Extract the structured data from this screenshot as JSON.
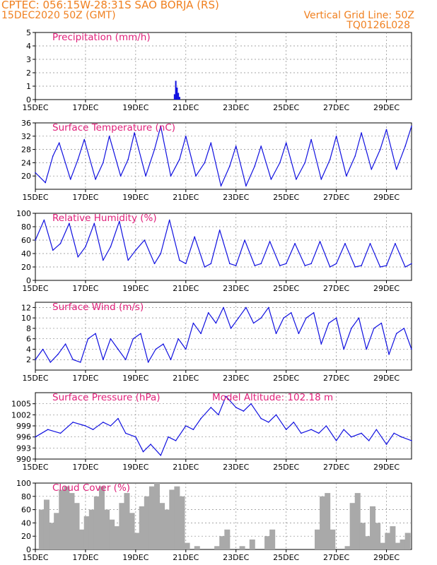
{
  "header": {
    "station": "CPTEC:   056:15W-28:31S  SAO BORJA (RS)",
    "date": "15DEC2020 50Z (GMT)",
    "grid_note": "Vertical Grid Line: 50Z",
    "model_code": "TQ0126L028"
  },
  "colors": {
    "header": "#f08020",
    "title": "#e0207a",
    "line": "#1010e0",
    "bar": "#a9a9a9",
    "grid": "#888888"
  },
  "x_tick_labels": [
    "15DEC",
    "17DEC",
    "19DEC",
    "21DEC",
    "23DEC",
    "25DEC",
    "27DEC",
    "29DEC"
  ],
  "chart_data": [
    {
      "type": "bar",
      "title": "Precipitation (mm/h)",
      "ylim": [
        0,
        5
      ],
      "yticks": [
        0,
        1,
        2,
        3,
        4,
        5
      ],
      "x": [
        5.55,
        5.6,
        5.65,
        5.7,
        5.75
      ],
      "values": [
        0.4,
        1.4,
        0.9,
        0.5,
        0.2
      ]
    },
    {
      "type": "line",
      "title": "Surface Temperature (nC)",
      "ylim": [
        16,
        36
      ],
      "yticks": [
        20,
        24,
        28,
        32,
        36
      ],
      "x": [
        0,
        0.4,
        0.7,
        0.95,
        1.4,
        1.7,
        1.95,
        2.4,
        2.7,
        2.95,
        3.4,
        3.7,
        3.95,
        4.4,
        4.75,
        5,
        5.4,
        5.75,
        6,
        6.4,
        6.75,
        7,
        7.4,
        7.75,
        8,
        8.4,
        8.75,
        9,
        9.4,
        9.75,
        10,
        10.4,
        10.75,
        11,
        11.4,
        11.75,
        12,
        12.4,
        12.75,
        13,
        13.4,
        13.75,
        14,
        14.4,
        14.75,
        15
      ],
      "values": [
        21,
        18,
        26,
        30,
        19,
        25,
        31,
        19,
        24,
        32,
        20,
        25,
        33,
        20,
        28,
        35,
        20,
        25,
        32,
        20,
        24,
        30,
        17,
        23,
        29,
        17,
        23,
        29,
        19,
        24,
        30,
        19,
        24,
        31,
        19,
        25,
        32,
        20,
        26,
        33,
        22,
        28,
        34,
        22,
        29,
        35
      ]
    },
    {
      "type": "line",
      "title": "Relative Humidity (%)",
      "ylim": [
        0,
        100
      ],
      "yticks": [
        0,
        20,
        40,
        60,
        80,
        100
      ],
      "x": [
        0,
        0.35,
        0.7,
        1,
        1.35,
        1.7,
        2,
        2.35,
        2.7,
        3,
        3.35,
        3.7,
        4,
        4.35,
        4.75,
        5,
        5.35,
        5.75,
        6,
        6.35,
        6.75,
        7,
        7.35,
        7.75,
        8,
        8.35,
        8.75,
        9,
        9.35,
        9.75,
        10,
        10.35,
        10.75,
        11,
        11.35,
        11.75,
        12,
        12.35,
        12.75,
        13,
        13.35,
        13.75,
        14,
        14.35,
        14.75,
        15
      ],
      "values": [
        60,
        90,
        45,
        55,
        85,
        35,
        50,
        85,
        30,
        50,
        88,
        30,
        45,
        60,
        25,
        40,
        90,
        30,
        25,
        65,
        20,
        25,
        75,
        25,
        22,
        60,
        22,
        25,
        58,
        22,
        25,
        55,
        22,
        25,
        58,
        20,
        25,
        55,
        20,
        22,
        55,
        20,
        22,
        55,
        20,
        25
      ]
    },
    {
      "type": "line",
      "title": "Surface Wind (m/s)",
      "ylim": [
        0,
        13
      ],
      "yticks": [
        2,
        4,
        6,
        8,
        10,
        12
      ],
      "x": [
        0,
        0.3,
        0.6,
        0.9,
        1.2,
        1.5,
        1.8,
        2.1,
        2.4,
        2.7,
        3,
        3.3,
        3.6,
        3.9,
        4.2,
        4.5,
        4.8,
        5.1,
        5.4,
        5.7,
        6,
        6.3,
        6.6,
        6.9,
        7.2,
        7.5,
        7.8,
        8.1,
        8.4,
        8.7,
        9,
        9.3,
        9.6,
        9.9,
        10.2,
        10.5,
        10.8,
        11.1,
        11.4,
        11.7,
        12,
        12.3,
        12.6,
        12.9,
        13.2,
        13.5,
        13.8,
        14.1,
        14.4,
        14.7,
        15
      ],
      "values": [
        2,
        4,
        1.5,
        3,
        5,
        2,
        1.5,
        6,
        7,
        2,
        6,
        4,
        2,
        6,
        7,
        1.5,
        4,
        5,
        2,
        6,
        4,
        9,
        7,
        11,
        9,
        12,
        8,
        10,
        12,
        9,
        10,
        12,
        7,
        10,
        11,
        7,
        10,
        11,
        5,
        9,
        10,
        4,
        8,
        10,
        4,
        8,
        9,
        3,
        7,
        8,
        4
      ]
    },
    {
      "type": "line",
      "title": "Surface Pressure (hPa)",
      "annotation": "Model Altitude: 102.18 m",
      "ylim": [
        990,
        1008
      ],
      "yticks": [
        990,
        993,
        996,
        999,
        1002,
        1005
      ],
      "x": [
        0,
        0.5,
        1,
        1.5,
        2,
        2.3,
        2.7,
        3,
        3.3,
        3.6,
        4,
        4.3,
        4.6,
        5,
        5.3,
        5.6,
        6,
        6.3,
        6.6,
        7,
        7.3,
        7.6,
        8,
        8.3,
        8.6,
        9,
        9.3,
        9.6,
        10,
        10.3,
        10.6,
        11,
        11.3,
        11.6,
        12,
        12.3,
        12.6,
        13,
        13.3,
        13.6,
        14,
        14.3,
        14.6,
        15
      ],
      "values": [
        996,
        998,
        997,
        1000,
        999,
        998,
        1000,
        999,
        1001,
        997,
        996,
        992,
        994,
        991,
        996,
        995,
        999,
        998,
        1001,
        1004,
        1002,
        1007,
        1004,
        1003,
        1005,
        1001,
        1000,
        1002,
        998,
        1000,
        997,
        998,
        997,
        999,
        995,
        998,
        996,
        997,
        995,
        998,
        994,
        997,
        996,
        995
      ]
    },
    {
      "type": "bar",
      "title": "Cloud Cover (%)",
      "ylim": [
        0,
        100
      ],
      "yticks": [
        0,
        20,
        40,
        60,
        80,
        100
      ],
      "x": [
        0.25,
        0.45,
        0.65,
        0.85,
        1.05,
        1.25,
        1.45,
        1.65,
        1.85,
        2.05,
        2.25,
        2.45,
        2.65,
        2.85,
        3.05,
        3.25,
        3.45,
        3.65,
        3.85,
        4.05,
        4.25,
        4.45,
        4.65,
        4.85,
        5.05,
        5.25,
        5.45,
        5.65,
        5.85,
        6.05,
        6.25,
        6.45,
        6.65,
        6.85,
        7.05,
        7.25,
        7.45,
        7.65,
        7.85,
        8.05,
        8.25,
        8.45,
        8.65,
        8.85,
        9.05,
        9.25,
        9.45,
        9.65,
        9.85,
        10.05,
        10.25,
        10.45,
        10.65,
        10.85,
        11.05,
        11.25,
        11.45,
        11.65,
        11.85,
        12.05,
        12.25,
        12.45,
        12.65,
        12.85,
        13.05,
        13.25,
        13.45,
        13.65,
        13.85,
        14.05,
        14.25,
        14.45,
        14.65,
        14.85
      ],
      "values": [
        60,
        75,
        40,
        55,
        90,
        95,
        85,
        70,
        30,
        50,
        60,
        80,
        95,
        60,
        45,
        35,
        70,
        85,
        55,
        25,
        65,
        80,
        95,
        100,
        70,
        60,
        90,
        95,
        80,
        10,
        0,
        5,
        0,
        0,
        0,
        5,
        20,
        30,
        0,
        0,
        5,
        0,
        15,
        0,
        0,
        20,
        30,
        0,
        0,
        0,
        0,
        0,
        0,
        0,
        0,
        30,
        80,
        85,
        30,
        0,
        0,
        5,
        70,
        85,
        40,
        20,
        65,
        40,
        10,
        25,
        35,
        10,
        15,
        25
      ]
    }
  ]
}
